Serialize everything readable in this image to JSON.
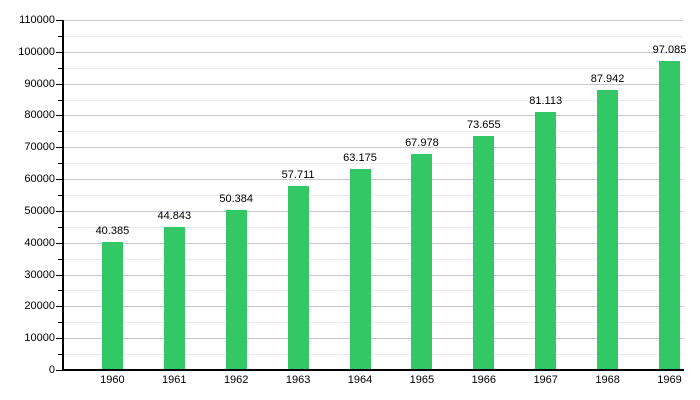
{
  "chart_data": {
    "type": "bar",
    "title": "",
    "xlabel": "",
    "ylabel": "",
    "categories": [
      "1960",
      "1961",
      "1962",
      "1963",
      "1964",
      "1965",
      "1966",
      "1967",
      "1968",
      "1969"
    ],
    "values": [
      40385,
      44843,
      50384,
      57711,
      63175,
      67978,
      73655,
      81113,
      87942,
      97085
    ],
    "bar_labels": [
      "40.385",
      "44.843",
      "50.384",
      "57.711",
      "63.175",
      "67.978",
      "73.655",
      "81.113",
      "87.942",
      "97.085"
    ],
    "ylim": [
      0,
      110000
    ],
    "ytick_step": 10000,
    "yminor_step": 5000,
    "ytick_labels": [
      "0",
      "10000",
      "20000",
      "30000",
      "40000",
      "50000",
      "60000",
      "70000",
      "80000",
      "90000",
      "100000",
      "110000"
    ],
    "grid": true,
    "legend_position": "none",
    "bar_color": "#33c766",
    "major_grid_color": "#c6c6d8",
    "minor_grid_color": "#e9e9f1",
    "axis_color": "#000000",
    "text_color": "#000000"
  }
}
